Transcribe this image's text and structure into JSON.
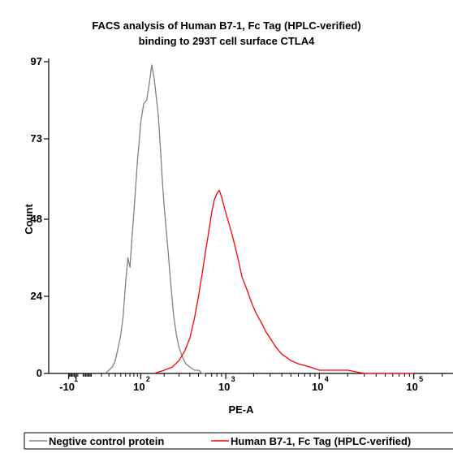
{
  "chart_data": {
    "type": "line",
    "title": [
      "FACS analysis of Human B7-1, Fc Tag (HPLC-verified)",
      "binding to 293T cell surface CTLA4"
    ],
    "xlabel": "PE-A",
    "ylabel": "Count",
    "x_scale": "logicle",
    "y_ticks": [
      0,
      24,
      48,
      73,
      97
    ],
    "ylim": [
      0,
      97
    ],
    "x_ticks": [
      {
        "base": "-10",
        "exp": "1",
        "value": -10
      },
      {
        "base": "10",
        "exp": "2",
        "value": 100
      },
      {
        "base": "10",
        "exp": "3",
        "value": 1000
      },
      {
        "base": "10",
        "exp": "4",
        "value": 10000
      },
      {
        "base": "10",
        "exp": "5",
        "value": 100000
      }
    ],
    "xlim": [
      -35,
      260000
    ],
    "grid": false,
    "legend_position": "bottom",
    "series": [
      {
        "name": "Negtive control protein",
        "color": "#808080",
        "x": [
          25,
          30,
          35,
          40,
          45,
          50,
          55,
          60,
          65,
          70,
          75,
          80,
          85,
          90,
          95,
          100,
          110,
          120,
          130,
          140,
          150,
          160,
          170,
          180,
          190,
          200,
          220,
          240,
          260,
          280,
          300,
          330,
          360,
          400,
          450,
          500,
          550,
          600
        ],
        "y": [
          0,
          1,
          2,
          4,
          8,
          12,
          18,
          28,
          36,
          33,
          42,
          50,
          58,
          66,
          72,
          78,
          84,
          85,
          90,
          96,
          92,
          86,
          80,
          70,
          60,
          52,
          40,
          28,
          18,
          12,
          8,
          5,
          3,
          2,
          1,
          1,
          0,
          0
        ]
      },
      {
        "name": "Human B7-1, Fc Tag (HPLC-verified)",
        "color": "#ff0000",
        "x": [
          150,
          200,
          250,
          300,
          350,
          400,
          450,
          500,
          550,
          600,
          650,
          700,
          750,
          800,
          850,
          900,
          1000,
          1100,
          1200,
          1300,
          1400,
          1500,
          1700,
          1900,
          2100,
          2400,
          2700,
          3000,
          3500,
          4000,
          5000,
          6000,
          8000,
          10000,
          15000,
          20000,
          30000,
          50000,
          100000
        ],
        "y": [
          0,
          1,
          2,
          4,
          7,
          11,
          17,
          24,
          31,
          38,
          44,
          50,
          54,
          56,
          57,
          55,
          50,
          46,
          42,
          38,
          34,
          30,
          26,
          22,
          19,
          16,
          13,
          11,
          8,
          6,
          4,
          3,
          2,
          1,
          1,
          1,
          0,
          0,
          0
        ]
      }
    ]
  }
}
